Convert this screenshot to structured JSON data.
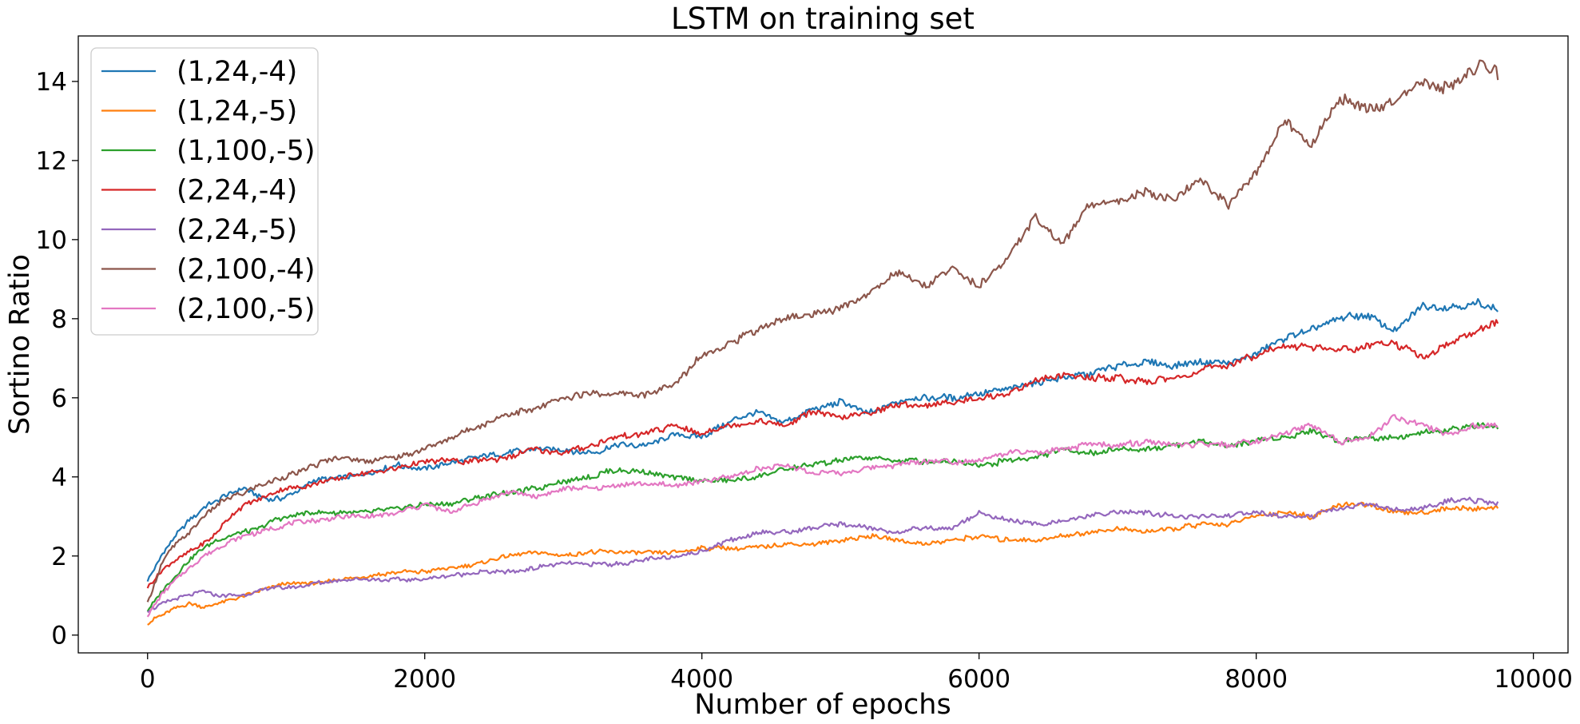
{
  "chart_data": {
    "type": "line",
    "title": "LSTM on training set",
    "xlabel": "Number of epochs",
    "ylabel": "Sortino Ratio",
    "xlim": [
      -500,
      10250
    ],
    "ylim": [
      -0.45,
      15.15
    ],
    "xticks": [
      0,
      2000,
      4000,
      6000,
      8000,
      10000
    ],
    "yticks": [
      0,
      2,
      4,
      6,
      8,
      10,
      12,
      14
    ],
    "grid": false,
    "legend_position": "upper-left",
    "series": [
      {
        "name": "(1,24,-4)",
        "color": "#1f77b4",
        "x": [
          0,
          100,
          200,
          300,
          400,
          500,
          600,
          700,
          800,
          900,
          1000,
          1200,
          1400,
          1600,
          1800,
          2000,
          2200,
          2400,
          2600,
          2800,
          3000,
          3200,
          3400,
          3600,
          3800,
          4000,
          4200,
          4400,
          4600,
          4800,
          5000,
          5200,
          5400,
          5600,
          5800,
          6000,
          6200,
          6400,
          6600,
          6800,
          7000,
          7200,
          7400,
          7600,
          7800,
          8000,
          8200,
          8400,
          8600,
          8800,
          9000,
          9200,
          9400,
          9600,
          9750
        ],
        "y": [
          1.4,
          2.0,
          2.5,
          2.9,
          3.2,
          3.4,
          3.6,
          3.7,
          3.5,
          3.4,
          3.5,
          3.9,
          4.0,
          4.1,
          4.3,
          4.2,
          4.4,
          4.5,
          4.6,
          4.7,
          4.7,
          4.6,
          4.8,
          4.8,
          5.1,
          5.0,
          5.4,
          5.6,
          5.4,
          5.7,
          5.9,
          5.6,
          5.9,
          6.0,
          6.0,
          6.1,
          6.2,
          6.4,
          6.5,
          6.6,
          6.8,
          6.9,
          6.8,
          6.9,
          6.9,
          7.1,
          7.5,
          7.7,
          8.0,
          8.1,
          7.7,
          8.3,
          8.3,
          8.4,
          8.2
        ]
      },
      {
        "name": "(1,24,-5)",
        "color": "#ff7f0e",
        "x": [
          0,
          100,
          200,
          300,
          400,
          500,
          600,
          700,
          800,
          900,
          1000,
          1200,
          1400,
          1600,
          1800,
          2000,
          2200,
          2400,
          2600,
          2800,
          3000,
          3200,
          3400,
          3600,
          3800,
          4000,
          4200,
          4400,
          4600,
          4800,
          5000,
          5200,
          5400,
          5600,
          5800,
          6000,
          6200,
          6400,
          6600,
          6800,
          7000,
          7200,
          7400,
          7600,
          7800,
          8000,
          8200,
          8400,
          8600,
          8800,
          9000,
          9200,
          9400,
          9600,
          9750
        ],
        "y": [
          0.3,
          0.5,
          0.7,
          0.8,
          0.7,
          0.8,
          0.9,
          1.0,
          1.1,
          1.2,
          1.3,
          1.3,
          1.4,
          1.5,
          1.6,
          1.6,
          1.7,
          1.8,
          2.0,
          2.1,
          2.0,
          2.1,
          2.1,
          2.1,
          2.1,
          2.2,
          2.2,
          2.2,
          2.3,
          2.3,
          2.4,
          2.5,
          2.4,
          2.3,
          2.4,
          2.5,
          2.4,
          2.4,
          2.5,
          2.6,
          2.7,
          2.6,
          2.7,
          2.8,
          2.8,
          3.0,
          3.1,
          3.0,
          3.3,
          3.3,
          3.1,
          3.1,
          3.2,
          3.2,
          3.2
        ]
      },
      {
        "name": "(1,100,-5)",
        "color": "#2ca02c",
        "x": [
          0,
          100,
          200,
          300,
          400,
          500,
          600,
          700,
          800,
          900,
          1000,
          1200,
          1400,
          1600,
          1800,
          2000,
          2200,
          2400,
          2600,
          2800,
          3000,
          3200,
          3400,
          3600,
          3800,
          4000,
          4200,
          4400,
          4600,
          4800,
          5000,
          5200,
          5400,
          5600,
          5800,
          6000,
          6200,
          6400,
          6600,
          6800,
          7000,
          7200,
          7400,
          7600,
          7800,
          8000,
          8200,
          8400,
          8600,
          8800,
          9000,
          9200,
          9400,
          9600,
          9750
        ],
        "y": [
          0.6,
          1.1,
          1.5,
          1.9,
          2.2,
          2.4,
          2.5,
          2.6,
          2.7,
          2.9,
          3.0,
          3.1,
          3.1,
          3.1,
          3.2,
          3.3,
          3.3,
          3.5,
          3.6,
          3.7,
          3.9,
          4.0,
          4.2,
          4.1,
          4.0,
          3.9,
          3.9,
          4.0,
          4.2,
          4.3,
          4.4,
          4.5,
          4.4,
          4.4,
          4.4,
          4.3,
          4.4,
          4.5,
          4.7,
          4.6,
          4.7,
          4.7,
          4.8,
          4.9,
          4.8,
          4.9,
          5.0,
          5.2,
          4.9,
          5.0,
          5.0,
          5.1,
          5.2,
          5.3,
          5.2
        ]
      },
      {
        "name": "(2,24,-4)",
        "color": "#d62728",
        "x": [
          0,
          100,
          200,
          300,
          400,
          500,
          600,
          700,
          800,
          900,
          1000,
          1200,
          1400,
          1600,
          1800,
          2000,
          2200,
          2400,
          2600,
          2800,
          3000,
          3200,
          3400,
          3600,
          3800,
          4000,
          4200,
          4400,
          4600,
          4800,
          5000,
          5200,
          5400,
          5600,
          5800,
          6000,
          6200,
          6400,
          6600,
          6800,
          7000,
          7200,
          7400,
          7600,
          7800,
          8000,
          8200,
          8400,
          8600,
          8800,
          9000,
          9200,
          9400,
          9600,
          9750
        ],
        "y": [
          1.2,
          1.6,
          1.9,
          2.1,
          2.3,
          2.6,
          3.0,
          3.3,
          3.4,
          3.6,
          3.7,
          3.8,
          4.0,
          4.1,
          4.2,
          4.4,
          4.4,
          4.4,
          4.5,
          4.7,
          4.6,
          4.8,
          5.0,
          5.1,
          5.3,
          5.1,
          5.3,
          5.4,
          5.3,
          5.7,
          5.5,
          5.6,
          5.8,
          5.8,
          5.9,
          6.0,
          6.1,
          6.4,
          6.6,
          6.5,
          6.5,
          6.4,
          6.5,
          6.7,
          6.8,
          7.1,
          7.3,
          7.3,
          7.2,
          7.3,
          7.4,
          7.0,
          7.4,
          7.7,
          7.9
        ]
      },
      {
        "name": "(2,24,-5)",
        "color": "#9467bd",
        "x": [
          0,
          100,
          200,
          300,
          400,
          500,
          600,
          700,
          800,
          900,
          1000,
          1200,
          1400,
          1600,
          1800,
          2000,
          2200,
          2400,
          2600,
          2800,
          3000,
          3200,
          3400,
          3600,
          3800,
          4000,
          4200,
          4400,
          4600,
          4800,
          5000,
          5200,
          5400,
          5600,
          5800,
          6000,
          6200,
          6400,
          6600,
          6800,
          7000,
          7200,
          7400,
          7600,
          7800,
          8000,
          8200,
          8400,
          8600,
          8800,
          9000,
          9200,
          9400,
          9600,
          9750
        ],
        "y": [
          0.6,
          0.8,
          0.9,
          1.0,
          1.1,
          1.0,
          1.0,
          1.0,
          1.1,
          1.2,
          1.2,
          1.3,
          1.4,
          1.4,
          1.4,
          1.4,
          1.5,
          1.6,
          1.6,
          1.7,
          1.8,
          1.8,
          1.8,
          1.9,
          2.0,
          2.1,
          2.4,
          2.6,
          2.6,
          2.7,
          2.8,
          2.7,
          2.6,
          2.7,
          2.7,
          3.1,
          2.9,
          2.8,
          2.9,
          3.0,
          3.1,
          3.1,
          3.0,
          3.0,
          3.0,
          3.1,
          3.0,
          3.0,
          3.2,
          3.3,
          3.2,
          3.2,
          3.4,
          3.4,
          3.3
        ]
      },
      {
        "name": "(2,100,-4)",
        "color": "#8c564b",
        "x": [
          0,
          100,
          200,
          300,
          400,
          500,
          600,
          700,
          800,
          900,
          1000,
          1200,
          1400,
          1600,
          1800,
          2000,
          2200,
          2400,
          2600,
          2800,
          3000,
          3200,
          3400,
          3600,
          3800,
          4000,
          4200,
          4400,
          4600,
          4800,
          5000,
          5200,
          5400,
          5600,
          5800,
          6000,
          6200,
          6400,
          6600,
          6800,
          7000,
          7200,
          7400,
          7600,
          7800,
          8000,
          8200,
          8400,
          8600,
          8800,
          9000,
          9200,
          9400,
          9600,
          9750
        ],
        "y": [
          0.8,
          1.8,
          2.3,
          2.6,
          3.0,
          3.3,
          3.5,
          3.6,
          3.8,
          3.9,
          4.0,
          4.3,
          4.5,
          4.4,
          4.5,
          4.7,
          5.0,
          5.3,
          5.6,
          5.7,
          6.0,
          6.1,
          6.1,
          6.1,
          6.3,
          7.1,
          7.4,
          7.7,
          8.0,
          8.1,
          8.3,
          8.6,
          9.2,
          8.8,
          9.3,
          8.8,
          9.5,
          10.6,
          9.9,
          10.9,
          11.0,
          11.2,
          11.0,
          11.5,
          10.9,
          11.7,
          13.0,
          12.4,
          13.6,
          13.3,
          13.5,
          14.0,
          13.8,
          14.4,
          14.2
        ]
      },
      {
        "name": "(2,100,-5)",
        "color": "#e377c2",
        "x": [
          0,
          100,
          200,
          300,
          400,
          500,
          600,
          700,
          800,
          900,
          1000,
          1200,
          1400,
          1600,
          1800,
          2000,
          2200,
          2400,
          2600,
          2800,
          3000,
          3200,
          3400,
          3600,
          3800,
          4000,
          4200,
          4400,
          4600,
          4800,
          5000,
          5200,
          5400,
          5600,
          5800,
          6000,
          6200,
          6400,
          6600,
          6800,
          7000,
          7200,
          7400,
          7600,
          7800,
          8000,
          8200,
          8400,
          8600,
          8800,
          9000,
          9200,
          9400,
          9600,
          9750
        ],
        "y": [
          0.5,
          1.0,
          1.4,
          1.7,
          2.0,
          2.2,
          2.4,
          2.5,
          2.6,
          2.7,
          2.8,
          2.9,
          3.0,
          3.0,
          3.1,
          3.3,
          3.1,
          3.4,
          3.6,
          3.5,
          3.7,
          3.7,
          3.8,
          3.8,
          3.8,
          3.9,
          4.0,
          4.2,
          4.3,
          4.1,
          4.1,
          4.2,
          4.3,
          4.4,
          4.4,
          4.4,
          4.6,
          4.6,
          4.7,
          4.8,
          4.8,
          4.9,
          4.8,
          4.8,
          4.8,
          4.9,
          5.1,
          5.3,
          4.9,
          5.0,
          5.5,
          5.3,
          5.1,
          5.3,
          5.3
        ]
      }
    ]
  }
}
